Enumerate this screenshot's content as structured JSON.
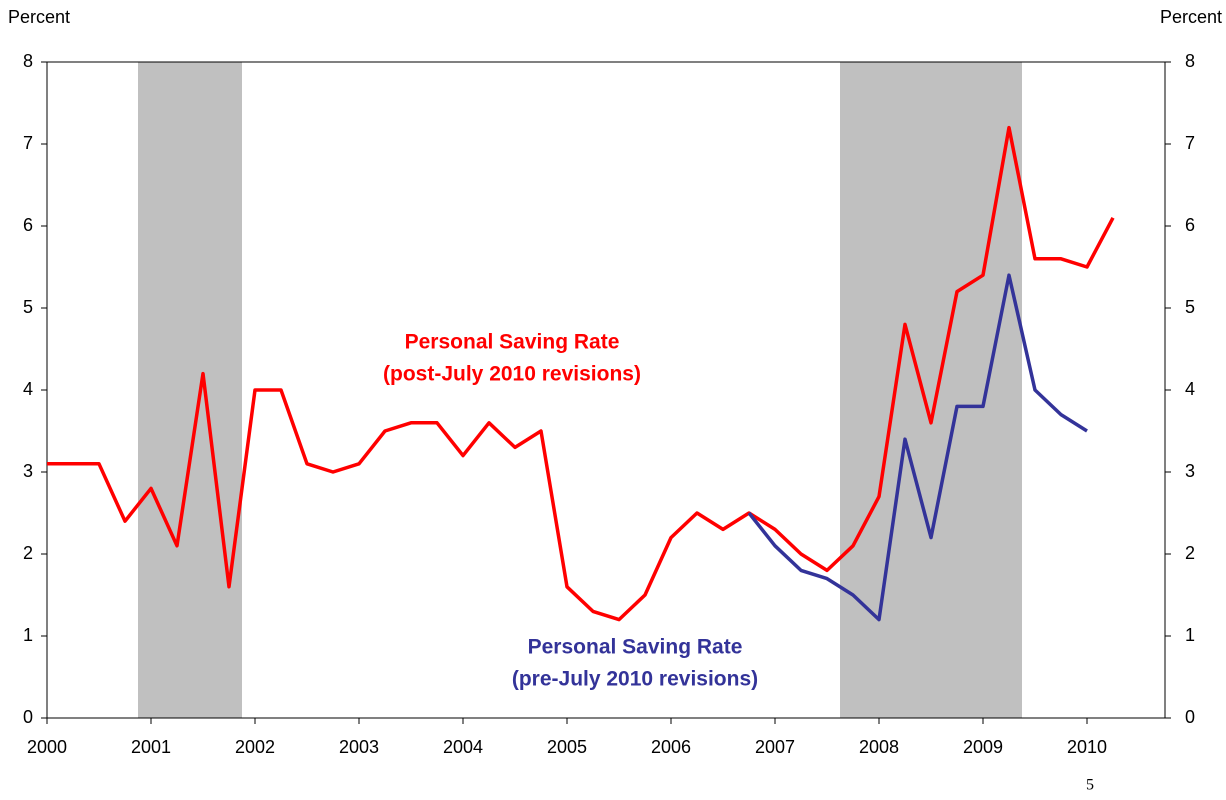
{
  "chart_data": {
    "type": "line",
    "y_label": "Percent",
    "y2_label": "Percent",
    "page_number": "5",
    "x": [
      2000,
      2000.25,
      2000.5,
      2000.75,
      2001,
      2001.25,
      2001.5,
      2001.75,
      2002,
      2002.25,
      2002.5,
      2002.75,
      2003,
      2003.25,
      2003.5,
      2003.75,
      2004,
      2004.25,
      2004.5,
      2004.75,
      2005,
      2005.25,
      2005.5,
      2005.75,
      2006,
      2006.25,
      2006.5,
      2006.75,
      2007,
      2007.25,
      2007.5,
      2007.75,
      2008,
      2008.25,
      2008.5,
      2008.75,
      2009,
      2009.25,
      2009.5,
      2009.75,
      2010,
      2010.25
    ],
    "series": [
      {
        "name": "Personal Saving Rate (post-July 2010 revisions)",
        "color": "#ff0000",
        "values": [
          3.1,
          3.1,
          3.1,
          2.4,
          2.8,
          2.1,
          4.2,
          1.6,
          4.0,
          4.0,
          3.1,
          3.0,
          3.1,
          3.5,
          3.6,
          3.6,
          3.2,
          3.6,
          3.3,
          3.5,
          1.6,
          1.3,
          1.2,
          1.5,
          2.2,
          2.5,
          2.3,
          2.5,
          2.3,
          2.0,
          1.8,
          2.1,
          2.7,
          4.8,
          3.6,
          5.2,
          5.4,
          7.2,
          5.6,
          5.6,
          5.5,
          6.1
        ]
      },
      {
        "name": "Personal Saving Rate (pre-July 2010 revisions)",
        "color": "#333399",
        "values": [
          null,
          null,
          null,
          null,
          null,
          null,
          null,
          null,
          null,
          null,
          null,
          null,
          null,
          null,
          null,
          null,
          null,
          null,
          null,
          null,
          null,
          null,
          null,
          null,
          null,
          null,
          null,
          2.5,
          2.1,
          1.8,
          1.7,
          1.5,
          1.2,
          3.4,
          2.2,
          3.8,
          3.8,
          5.4,
          4.0,
          3.7,
          3.5,
          null
        ]
      }
    ],
    "annotations": [
      {
        "lines": [
          "Personal Saving Rate",
          "(post-July 2010 revisions)"
        ],
        "color": "#ff0000"
      },
      {
        "lines": [
          "Personal Saving Rate",
          "(pre-July 2010 revisions)"
        ],
        "color": "#333399"
      }
    ],
    "recessions": [
      [
        2000.875,
        2001.875
      ],
      [
        2007.625,
        2009.375
      ]
    ],
    "recession_color": "#c0c0c0",
    "xlim": [
      2000,
      2010.75
    ],
    "xticks": [
      2000,
      2001,
      2002,
      2003,
      2004,
      2005,
      2006,
      2007,
      2008,
      2009,
      2010
    ],
    "ylim": [
      0,
      8
    ],
    "yticks": [
      0,
      1,
      2,
      3,
      4,
      5,
      6,
      7,
      8
    ],
    "y2lim": [
      0,
      8
    ],
    "y2ticks": [
      0,
      1,
      2,
      3,
      4,
      5,
      6,
      7,
      8
    ]
  }
}
